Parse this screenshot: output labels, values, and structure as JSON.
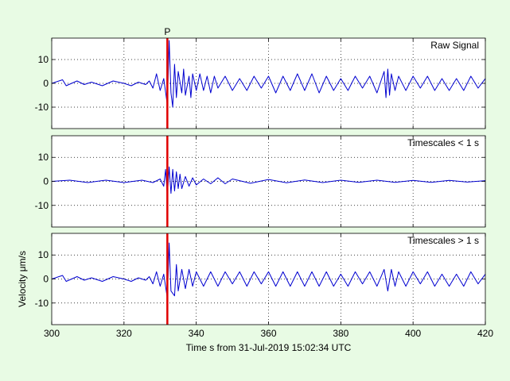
{
  "chart_data": {
    "type": "line",
    "xlabel": "Time s from 31-Jul-2019 15:02:34 UTC",
    "xlim": [
      300,
      420
    ],
    "xticks": [
      300,
      320,
      340,
      360,
      380,
      400,
      420
    ],
    "grid": true,
    "pick": {
      "label": "P",
      "x": 332,
      "color": "#e00000"
    },
    "series_color": "#0000d0",
    "panels": [
      {
        "title": "Raw Signal",
        "ylabel": "",
        "ylim": [
          -19,
          19
        ],
        "yticks": [
          10,
          0,
          -10
        ],
        "series": {
          "x": [
            300,
            303,
            304,
            307,
            309,
            311,
            314,
            317,
            320,
            322,
            324,
            326,
            327,
            328,
            329,
            330,
            331,
            332,
            332.5,
            333,
            333.5,
            334,
            334.5,
            335,
            336,
            336.5,
            337,
            338,
            338.5,
            339,
            340,
            341,
            342,
            343,
            344,
            345,
            346,
            348,
            350,
            352,
            354,
            356,
            358,
            360,
            362,
            364,
            366,
            368,
            370,
            372,
            374,
            376,
            378,
            380,
            382,
            384,
            386,
            388,
            390,
            392,
            392.5,
            393,
            393.5,
            394,
            395,
            396,
            398,
            400,
            402,
            404,
            406,
            408,
            410,
            412,
            414,
            416,
            418,
            420
          ],
          "y": [
            0,
            1.5,
            -1,
            1,
            -0.5,
            0.5,
            -1,
            1,
            0,
            -1,
            0.5,
            -0.5,
            1,
            -2,
            4,
            -3,
            2,
            -9,
            18,
            -4,
            -10,
            8,
            -6,
            5,
            -4,
            6,
            -5,
            3,
            -6,
            4,
            -3,
            4,
            -3,
            3,
            -4,
            3,
            -2,
            3,
            -3,
            2,
            -3,
            3,
            -2,
            3,
            -4,
            3,
            -3,
            4,
            -3,
            4,
            -4,
            3,
            -3,
            2,
            -3,
            3,
            -2,
            3,
            -4,
            5,
            -6,
            6,
            -5,
            4,
            -3,
            3,
            -3,
            3,
            -2,
            3,
            -3,
            2,
            -3,
            2,
            -3,
            3,
            -2,
            2
          ]
        }
      },
      {
        "title": "Timescales < 1 s",
        "ylabel": "",
        "ylim": [
          -19,
          19
        ],
        "yticks": [
          10,
          0,
          -10
        ],
        "series": {
          "x": [
            300,
            305,
            310,
            315,
            320,
            325,
            328,
            330,
            331,
            331.5,
            332,
            332.5,
            333,
            333.5,
            334,
            334.5,
            335,
            335.5,
            336,
            337,
            338,
            339,
            340,
            342,
            344,
            346,
            348,
            350,
            355,
            360,
            365,
            370,
            375,
            380,
            385,
            390,
            395,
            400,
            405,
            410,
            415,
            420
          ],
          "y": [
            0,
            0.5,
            -0.5,
            0.5,
            -0.5,
            0.5,
            -0.5,
            1,
            -2,
            5,
            -6,
            6,
            -5,
            5,
            -4,
            4,
            -3,
            3,
            -3,
            2,
            -2,
            1.5,
            -1.5,
            1,
            -1,
            1.5,
            -1,
            1,
            -0.8,
            0.8,
            -0.6,
            0.6,
            -0.5,
            0.5,
            -0.4,
            0.5,
            -0.4,
            0.4,
            -0.4,
            0.4,
            -0.3,
            0.3
          ]
        }
      },
      {
        "title": "Timescales > 1 s",
        "ylabel": "Velocity μm/s",
        "ylim": [
          -19,
          19
        ],
        "yticks": [
          10,
          0,
          -10
        ],
        "series": {
          "x": [
            300,
            303,
            304,
            307,
            309,
            311,
            314,
            317,
            320,
            322,
            324,
            326,
            327,
            328,
            329,
            330,
            331,
            332,
            332.5,
            333,
            334,
            334.5,
            335,
            336,
            337,
            338,
            339,
            340,
            342,
            344,
            346,
            348,
            350,
            352,
            354,
            356,
            358,
            360,
            362,
            364,
            366,
            368,
            370,
            372,
            374,
            376,
            378,
            380,
            382,
            384,
            386,
            388,
            390,
            392,
            393,
            394,
            395,
            396,
            398,
            400,
            402,
            404,
            406,
            408,
            410,
            412,
            414,
            416,
            418,
            420
          ],
          "y": [
            0,
            1.5,
            -1,
            1,
            -0.5,
            0.5,
            -1,
            1,
            0,
            -1,
            0.5,
            -0.5,
            1,
            -2,
            3,
            -3,
            2,
            -8,
            15,
            -5,
            -7,
            6,
            -5,
            4,
            -4,
            4,
            -3,
            3,
            -3,
            3,
            -3,
            3,
            -2,
            3,
            -3,
            3,
            -2,
            3,
            -3,
            3,
            -3,
            3,
            -3,
            3,
            -3,
            3,
            -3,
            2,
            -3,
            3,
            -2,
            3,
            -3,
            4,
            -5,
            4,
            -3,
            3,
            -3,
            3,
            -2,
            3,
            -3,
            2,
            -3,
            2,
            -3,
            3,
            -2,
            2
          ]
        }
      }
    ]
  }
}
